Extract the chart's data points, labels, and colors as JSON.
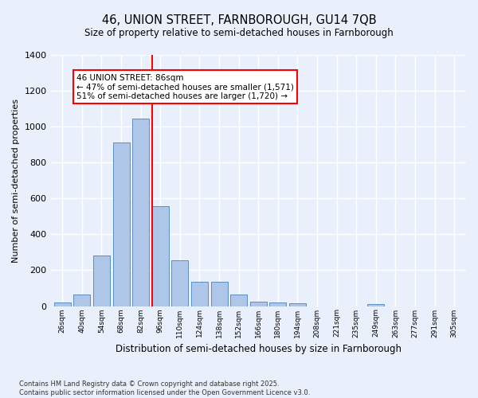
{
  "title": "46, UNION STREET, FARNBOROUGH, GU14 7QB",
  "subtitle": "Size of property relative to semi-detached houses in Farnborough",
  "xlabel": "Distribution of semi-detached houses by size in Farnborough",
  "ylabel": "Number of semi-detached properties",
  "footer_line1": "Contains HM Land Registry data © Crown copyright and database right 2025.",
  "footer_line2": "Contains public sector information licensed under the Open Government Licence v3.0.",
  "annotation_line1": "46 UNION STREET: 86sqm",
  "annotation_line2": "← 47% of semi-detached houses are smaller (1,571)",
  "annotation_line3": "51% of semi-detached houses are larger (1,720) →",
  "bar_labels": [
    "26sqm",
    "40sqm",
    "54sqm",
    "68sqm",
    "82sqm",
    "96sqm",
    "110sqm",
    "124sqm",
    "138sqm",
    "152sqm",
    "166sqm",
    "180sqm",
    "194sqm",
    "208sqm",
    "221sqm",
    "235sqm",
    "249sqm",
    "263sqm",
    "277sqm",
    "291sqm",
    "305sqm"
  ],
  "bar_values": [
    18,
    65,
    280,
    910,
    1045,
    555,
    255,
    135,
    135,
    65,
    25,
    20,
    15,
    0,
    0,
    0,
    10,
    0,
    0,
    0,
    0
  ],
  "bar_color": "#aec6e8",
  "bar_edge_color": "#5a8fc2",
  "bg_color": "#eaf0fb",
  "grid_color": "#ffffff",
  "vline_x": 4.57,
  "vline_color": "red",
  "ylim": [
    0,
    1400
  ],
  "yticks": [
    0,
    200,
    400,
    600,
    800,
    1000,
    1200,
    1400
  ]
}
